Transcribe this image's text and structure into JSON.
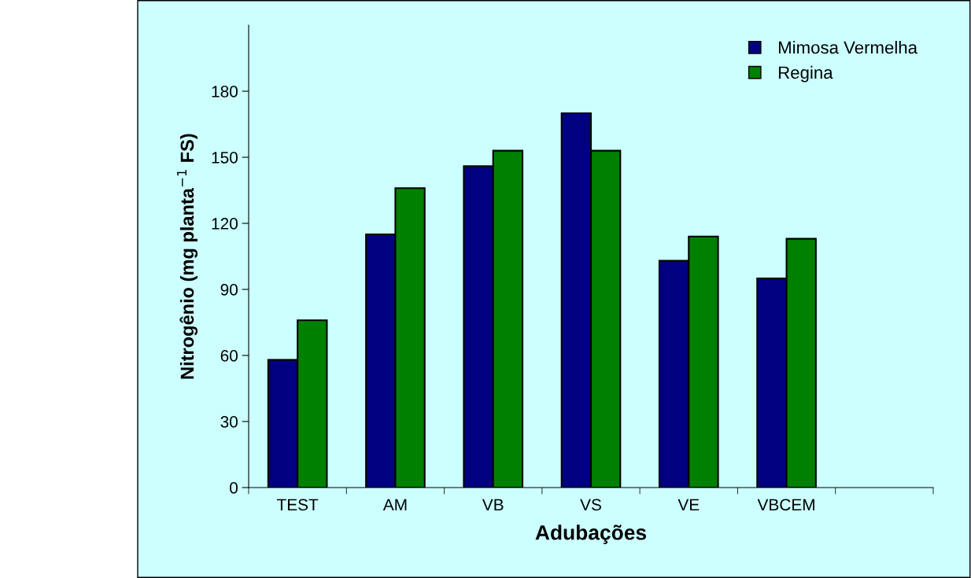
{
  "chart_data": {
    "type": "bar",
    "xlabel": "Adubações",
    "ylabel": "Nitrogênio (mg planta$^{−1}$ FS)",
    "categories": [
      "TEST",
      "AM",
      "VB",
      "VS",
      "VE",
      "VBCEM",
      null
    ],
    "series": [
      {
        "name": "Mimosa Vermelha",
        "color": "#000080",
        "values": [
          58,
          115,
          146,
          170,
          103,
          95,
          null
        ]
      },
      {
        "name": "Regina",
        "color": "#008000",
        "values": [
          76,
          136,
          153,
          153,
          114,
          113,
          null
        ]
      }
    ],
    "ylim": [
      0,
      210
    ],
    "yticks": [
      0,
      30,
      60,
      90,
      120,
      150,
      180
    ],
    "grid": false,
    "legend": "top right"
  }
}
